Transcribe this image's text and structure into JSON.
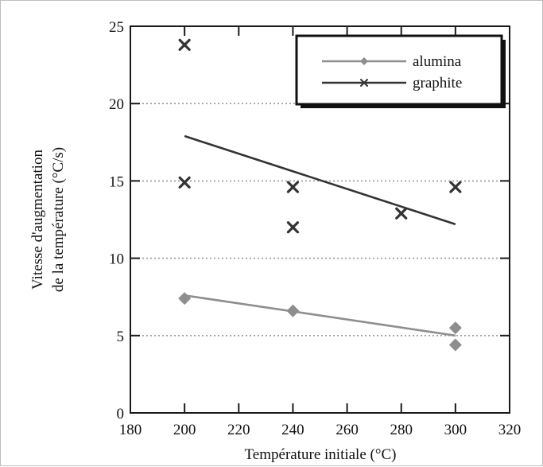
{
  "chart_data": {
    "type": "scatter",
    "xlabel": "Température initiale (°C)",
    "ylabel_lines": [
      "Vitesse d'augmentation",
      "de la température (°C/s)"
    ],
    "xlim": [
      180,
      320
    ],
    "ylim": [
      0,
      25
    ],
    "xticks": [
      "180",
      "200",
      "220",
      "240",
      "260",
      "280",
      "300",
      "320"
    ],
    "yticks": [
      "0",
      "5",
      "10",
      "15",
      "20",
      "25"
    ],
    "grid": "horizontal dotted",
    "legend_position": "top-right",
    "series": [
      {
        "name": "alumina",
        "marker": "diamond",
        "color": "#8e8e8e",
        "points": [
          {
            "x": 200,
            "y": 7.4
          },
          {
            "x": 240,
            "y": 6.6
          },
          {
            "x": 300,
            "y": 5.5
          },
          {
            "x": 300,
            "y": 4.4
          }
        ],
        "trend": [
          {
            "x": 200,
            "y": 7.6
          },
          {
            "x": 300,
            "y": 5.0
          }
        ]
      },
      {
        "name": "graphite",
        "marker": "x",
        "color": "#333333",
        "points": [
          {
            "x": 200,
            "y": 23.8
          },
          {
            "x": 200,
            "y": 14.9
          },
          {
            "x": 240,
            "y": 14.6
          },
          {
            "x": 240,
            "y": 12.0
          },
          {
            "x": 280,
            "y": 12.9
          },
          {
            "x": 300,
            "y": 14.6
          }
        ],
        "trend": [
          {
            "x": 200,
            "y": 17.9
          },
          {
            "x": 300,
            "y": 12.2
          }
        ]
      }
    ]
  }
}
